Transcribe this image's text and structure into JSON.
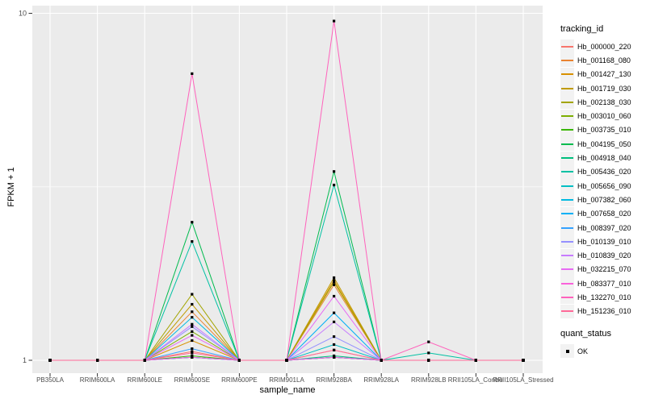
{
  "figure": {
    "bg": "#FFFFFF",
    "panel_bg": "#EBEBEB",
    "grid_color": "#FFFFFF",
    "tick_color": "#333333",
    "tick_label_color": "#4D4D4D",
    "marker_color": "#000000"
  },
  "chart_data": {
    "type": "line",
    "title": "",
    "xlabel": "sample_name",
    "ylabel": "FPKM + 1",
    "y_scale": "log10",
    "ylim": [
      1,
      10
    ],
    "y_ticks": [
      {
        "value": 1,
        "label": "1"
      },
      {
        "value": 10,
        "label": "10"
      }
    ],
    "y_minor_ticks": [
      3.162
    ],
    "grid": true,
    "legend_position": "right",
    "point_marker": "black-square",
    "categories": [
      "PB350LA",
      "RRIM600LA",
      "RRIM600LE",
      "RRIM600SE",
      "RRIM600PE",
      "RRIM901LA",
      "RRIM928BA",
      "RRIM928LA",
      "RRIM928LB",
      "RRII105LA_Control",
      "RRII105LA_Stressed"
    ],
    "series": [
      {
        "name": "Hb_000000_220",
        "color": "#F8766D",
        "values": [
          1,
          1,
          1,
          1.06,
          1,
          1,
          1.07,
          1,
          1,
          1,
          1
        ]
      },
      {
        "name": "Hb_001168_080",
        "color": "#EA8331",
        "values": [
          1,
          1,
          1,
          1.38,
          1,
          1,
          1.65,
          1,
          1,
          1,
          1
        ]
      },
      {
        "name": "Hb_001427_130",
        "color": "#D89000",
        "values": [
          1,
          1,
          1,
          1.14,
          1,
          1,
          1.7,
          1,
          1,
          1,
          1
        ]
      },
      {
        "name": "Hb_001719_030",
        "color": "#C09B00",
        "values": [
          1,
          1,
          1,
          1.45,
          1,
          1,
          1.73,
          1,
          1,
          1,
          1
        ]
      },
      {
        "name": "Hb_002138_030",
        "color": "#A3A500",
        "values": [
          1,
          1,
          1,
          1.55,
          1,
          1,
          1.68,
          1,
          1,
          1,
          1
        ]
      },
      {
        "name": "Hb_003010_060",
        "color": "#7CAE00",
        "values": [
          1,
          1,
          1,
          1.21,
          1,
          1,
          1.02,
          1,
          1,
          1,
          1
        ]
      },
      {
        "name": "Hb_003735_010",
        "color": "#39B600",
        "values": [
          1,
          1,
          1,
          1.03,
          1,
          1,
          1.02,
          1,
          1,
          1,
          1
        ]
      },
      {
        "name": "Hb_004195_050",
        "color": "#00BB4E",
        "values": [
          1,
          1,
          1,
          2.5,
          1,
          1,
          3.5,
          1,
          1,
          1,
          1
        ]
      },
      {
        "name": "Hb_004918_040",
        "color": "#00BF7D",
        "values": [
          1,
          1,
          1,
          1.02,
          1,
          1,
          1.03,
          1,
          1,
          1,
          1
        ]
      },
      {
        "name": "Hb_005436_020",
        "color": "#00C1A3",
        "values": [
          1,
          1,
          1,
          2.2,
          1,
          1,
          3.2,
          1,
          1.05,
          1,
          1
        ]
      },
      {
        "name": "Hb_005656_090",
        "color": "#00BFC4",
        "values": [
          1,
          1,
          1,
          1.02,
          1,
          1,
          1.11,
          1,
          1,
          1,
          1
        ]
      },
      {
        "name": "Hb_007382_060",
        "color": "#00BAE0",
        "values": [
          1,
          1,
          1,
          1.33,
          1,
          1,
          1.02,
          1,
          1,
          1,
          1
        ]
      },
      {
        "name": "Hb_007658_020",
        "color": "#00B0F6",
        "values": [
          1,
          1,
          1,
          1.02,
          1,
          1,
          1.37,
          1,
          1,
          1,
          1
        ]
      },
      {
        "name": "Hb_008397_020",
        "color": "#35A2FF",
        "values": [
          1,
          1,
          1,
          1.08,
          1,
          1,
          1.02,
          1,
          1,
          1,
          1
        ]
      },
      {
        "name": "Hb_010139_010",
        "color": "#9590FF",
        "values": [
          1,
          1,
          1,
          1.25,
          1,
          1,
          1.17,
          1,
          1,
          1,
          1
        ]
      },
      {
        "name": "Hb_010839_020",
        "color": "#C77CFF",
        "values": [
          1,
          1,
          1,
          1.27,
          1,
          1,
          1.29,
          1,
          1,
          1,
          1
        ]
      },
      {
        "name": "Hb_032215_070",
        "color": "#E76BF3",
        "values": [
          1,
          1,
          1,
          1.18,
          1,
          1,
          1.53,
          1,
          1,
          1,
          1
        ]
      },
      {
        "name": "Hb_083377_010",
        "color": "#FA62DB",
        "values": [
          1,
          1,
          1,
          1.02,
          1,
          1,
          1.02,
          1,
          1,
          1,
          1
        ]
      },
      {
        "name": "Hb_132270_010",
        "color": "#FF62BC",
        "values": [
          1,
          1,
          1,
          6.7,
          1,
          1,
          9.5,
          1,
          1.13,
          1,
          1
        ]
      },
      {
        "name": "Hb_151236_010",
        "color": "#FF6A98",
        "values": [
          1,
          1,
          1,
          1.05,
          1,
          1,
          1.07,
          1,
          1,
          1,
          1
        ]
      }
    ]
  },
  "legend": {
    "tracking_title": "tracking_id",
    "quant_title": "quant_status",
    "quant_items": [
      {
        "label": "OK",
        "marker": "black-square"
      }
    ]
  }
}
